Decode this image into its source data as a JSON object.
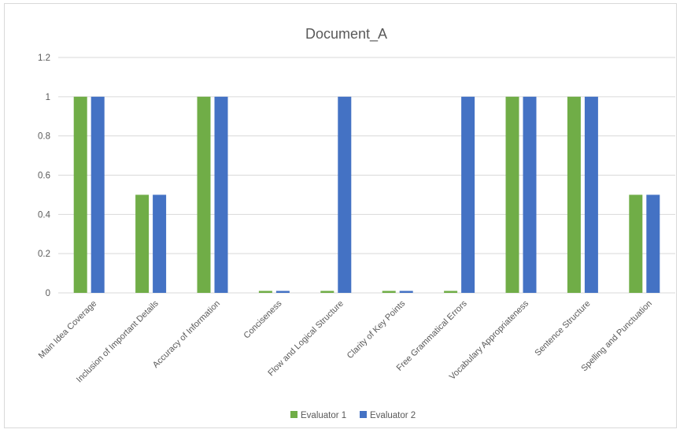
{
  "chart_data": {
    "type": "bar",
    "title": "Document_A",
    "xlabel": "",
    "ylabel": "",
    "ylim": [
      0,
      1.2
    ],
    "yticks": [
      "0",
      "0.2",
      "0.4",
      "0.6",
      "0.8",
      "1",
      "1.2"
    ],
    "grid": true,
    "legend_position": "bottom",
    "categories": [
      "Main Idea Coverage",
      "Inclusion of Important Details",
      "Accuracy of Information",
      "Conciseness",
      "Flow and Logical Structure",
      "Clarity of Key Points",
      "Free Grammatical Errors",
      "Vocabulary Appropriateness",
      "Sentence Structure",
      "Spelling and Punctuation"
    ],
    "series": [
      {
        "name": "Evaluator 1",
        "color": "#70ad47",
        "values": [
          1,
          0.5,
          1,
          0.01,
          0.01,
          0.01,
          0.01,
          1,
          1,
          0.5
        ]
      },
      {
        "name": "Evaluator 2",
        "color": "#4472c4",
        "values": [
          1,
          0.5,
          1,
          0.01,
          1,
          0.01,
          1,
          1,
          1,
          0.5
        ]
      }
    ]
  }
}
